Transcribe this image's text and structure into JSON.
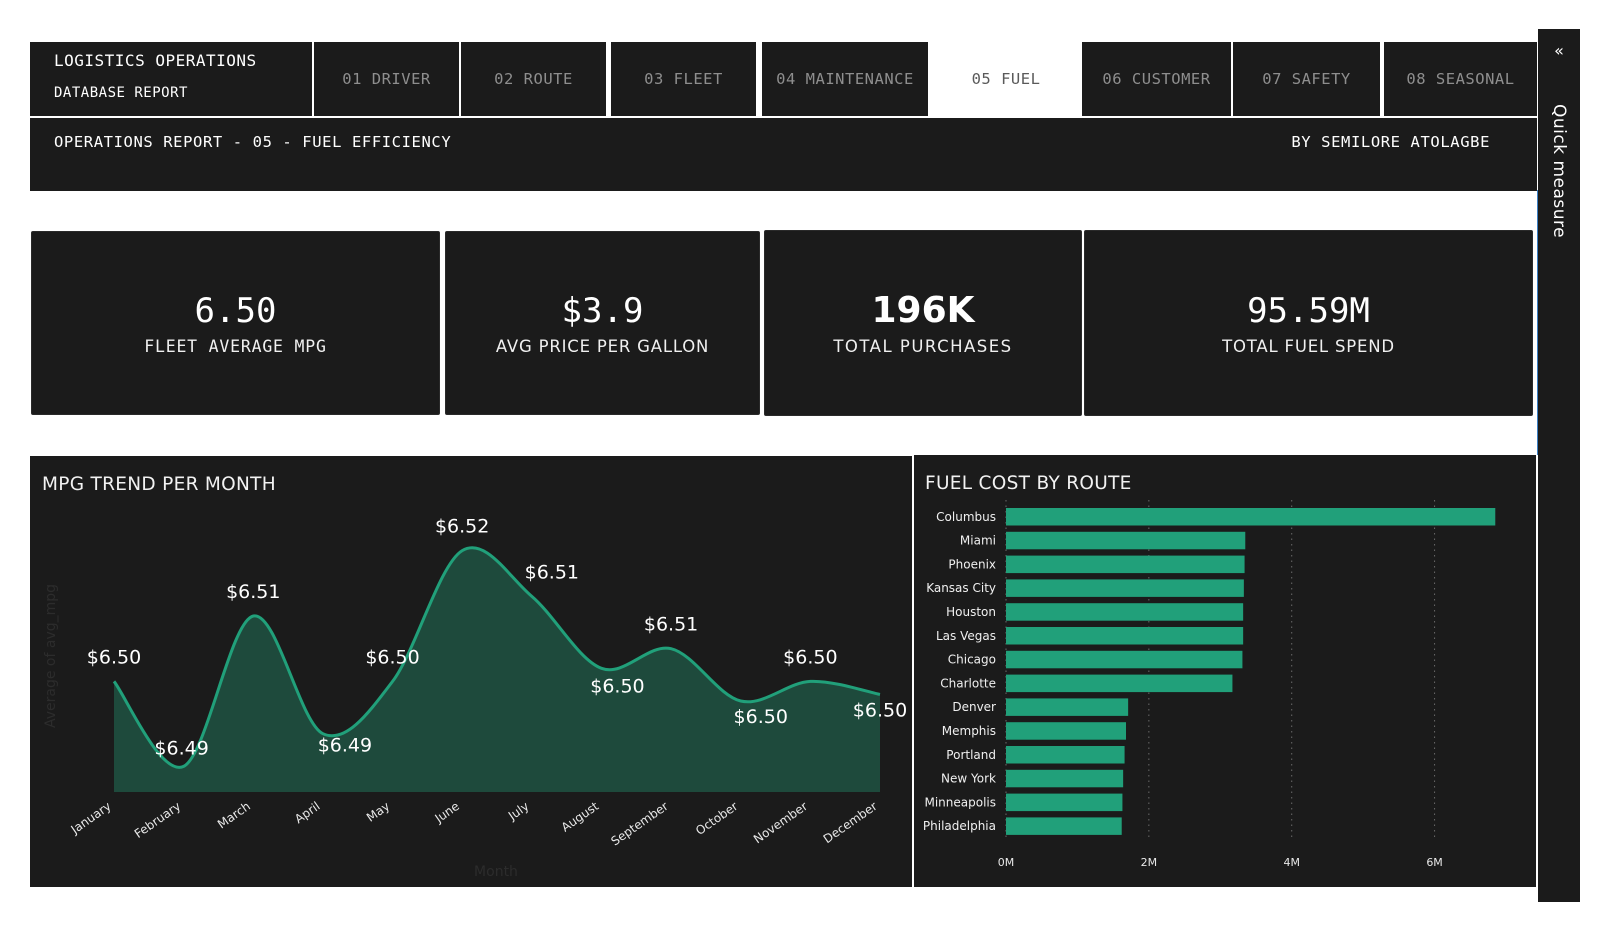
{
  "header": {
    "brand_line1": "LOGISTICS OPERATIONS",
    "brand_line2": "DATABASE REPORT",
    "tabs": [
      {
        "label": "01 DRIVER",
        "active": false
      },
      {
        "label": "02 ROUTE",
        "active": false
      },
      {
        "label": "03 FLEET",
        "active": false
      },
      {
        "label": "04 MAINTENANCE",
        "active": false
      },
      {
        "label": "05 FUEL",
        "active": true
      },
      {
        "label": "06 CUSTOMER",
        "active": false
      },
      {
        "label": "07 SAFETY",
        "active": false
      },
      {
        "label": "08 SEASONAL",
        "active": false
      }
    ],
    "report_title": "OPERATIONS REPORT - 05 - FUEL EFFICIENCY",
    "author": "BY SEMILORE ATOLAGBE"
  },
  "kpis": [
    {
      "value": "6.50",
      "label": "FLEET AVERAGE MPG"
    },
    {
      "value": "$3.9",
      "label": "AVG PRICE PER GALLON"
    },
    {
      "value": "196K",
      "label": "TOTAL PURCHASES"
    },
    {
      "value": "95.59M",
      "label": "TOTAL FUEL SPEND"
    }
  ],
  "quick_measure": {
    "label": "Quick measure",
    "icon": "chevron-double-left-icon"
  },
  "colors": {
    "background": "#1b1b1b",
    "accent": "#21a07a",
    "area_fill": "#1e4a3c",
    "text": "#ffffff"
  },
  "chart_data": [
    {
      "type": "area",
      "title": "MPG TREND PER MONTH",
      "xlabel": "Month",
      "ylabel": "Average of avg_mpg",
      "categories": [
        "January",
        "February",
        "March",
        "April",
        "May",
        "June",
        "July",
        "August",
        "September",
        "October",
        "November",
        "December"
      ],
      "values": [
        6.5,
        6.487,
        6.51,
        6.492,
        6.5,
        6.52,
        6.513,
        6.502,
        6.505,
        6.497,
        6.5,
        6.498
      ],
      "data_labels": [
        "$6.50",
        "$6.49",
        "$6.51",
        "$6.49",
        "$6.50",
        "$6.52",
        "$6.51",
        "$6.50",
        "$6.51",
        "$6.50",
        "$6.50",
        "$6.50"
      ],
      "ylim": [
        6.484,
        6.523
      ]
    },
    {
      "type": "bar",
      "orientation": "horizontal",
      "title": "FUEL COST BY ROUTE",
      "categories": [
        "Columbus",
        "Miami",
        "Phoenix",
        "Kansas City",
        "Houston",
        "Las Vegas",
        "Chicago",
        "Charlotte",
        "Denver",
        "Memphis",
        "Portland",
        "New York",
        "Minneapolis",
        "Philadelphia"
      ],
      "values": [
        6.85,
        3.35,
        3.34,
        3.33,
        3.32,
        3.32,
        3.31,
        3.17,
        1.71,
        1.68,
        1.66,
        1.64,
        1.63,
        1.62
      ],
      "unit": "M",
      "xticks": [
        "0M",
        "2M",
        "4M",
        "6M"
      ],
      "xlim": [
        0,
        7.0
      ],
      "grid": true
    }
  ]
}
